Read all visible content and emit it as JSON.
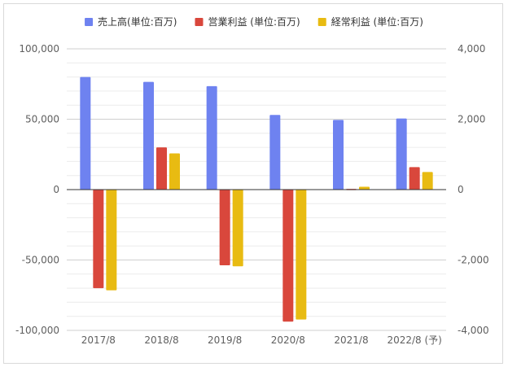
{
  "chart_data": {
    "type": "bar",
    "categories": [
      "2017/8",
      "2018/8",
      "2019/8",
      "2020/8",
      "2021/8",
      "2022/8 (予)"
    ],
    "legend_position": "top",
    "grid": true,
    "left_axis": {
      "ylim": [
        -100000,
        100000
      ],
      "ticks": [
        100000,
        50000,
        0,
        -50000,
        -100000
      ],
      "tick_labels": [
        "100,000",
        "50,000",
        "0",
        "-50,000",
        "-100,000"
      ]
    },
    "right_axis": {
      "ylim": [
        -4000,
        4000
      ],
      "ticks": [
        4000,
        2000,
        0,
        -2000,
        -4000
      ],
      "tick_labels": [
        "4,000",
        "2,000",
        "0",
        "-2,000",
        "-4,000"
      ]
    },
    "series": [
      {
        "name": "売上高(単位:百万)",
        "axis": "left",
        "color": "#6e82f0",
        "values": [
          80000,
          76500,
          73500,
          53000,
          49500,
          50500
        ]
      },
      {
        "name": "営業利益 (単位:百万)",
        "axis": "right",
        "color": "#d9473c",
        "values": [
          -2800,
          1200,
          -2150,
          -3750,
          20,
          640
        ]
      },
      {
        "name": "経常利益 (単位:百万)",
        "axis": "right",
        "color": "#e8bb12",
        "values": [
          -2860,
          1030,
          -2180,
          -3690,
          80,
          500
        ]
      }
    ]
  }
}
